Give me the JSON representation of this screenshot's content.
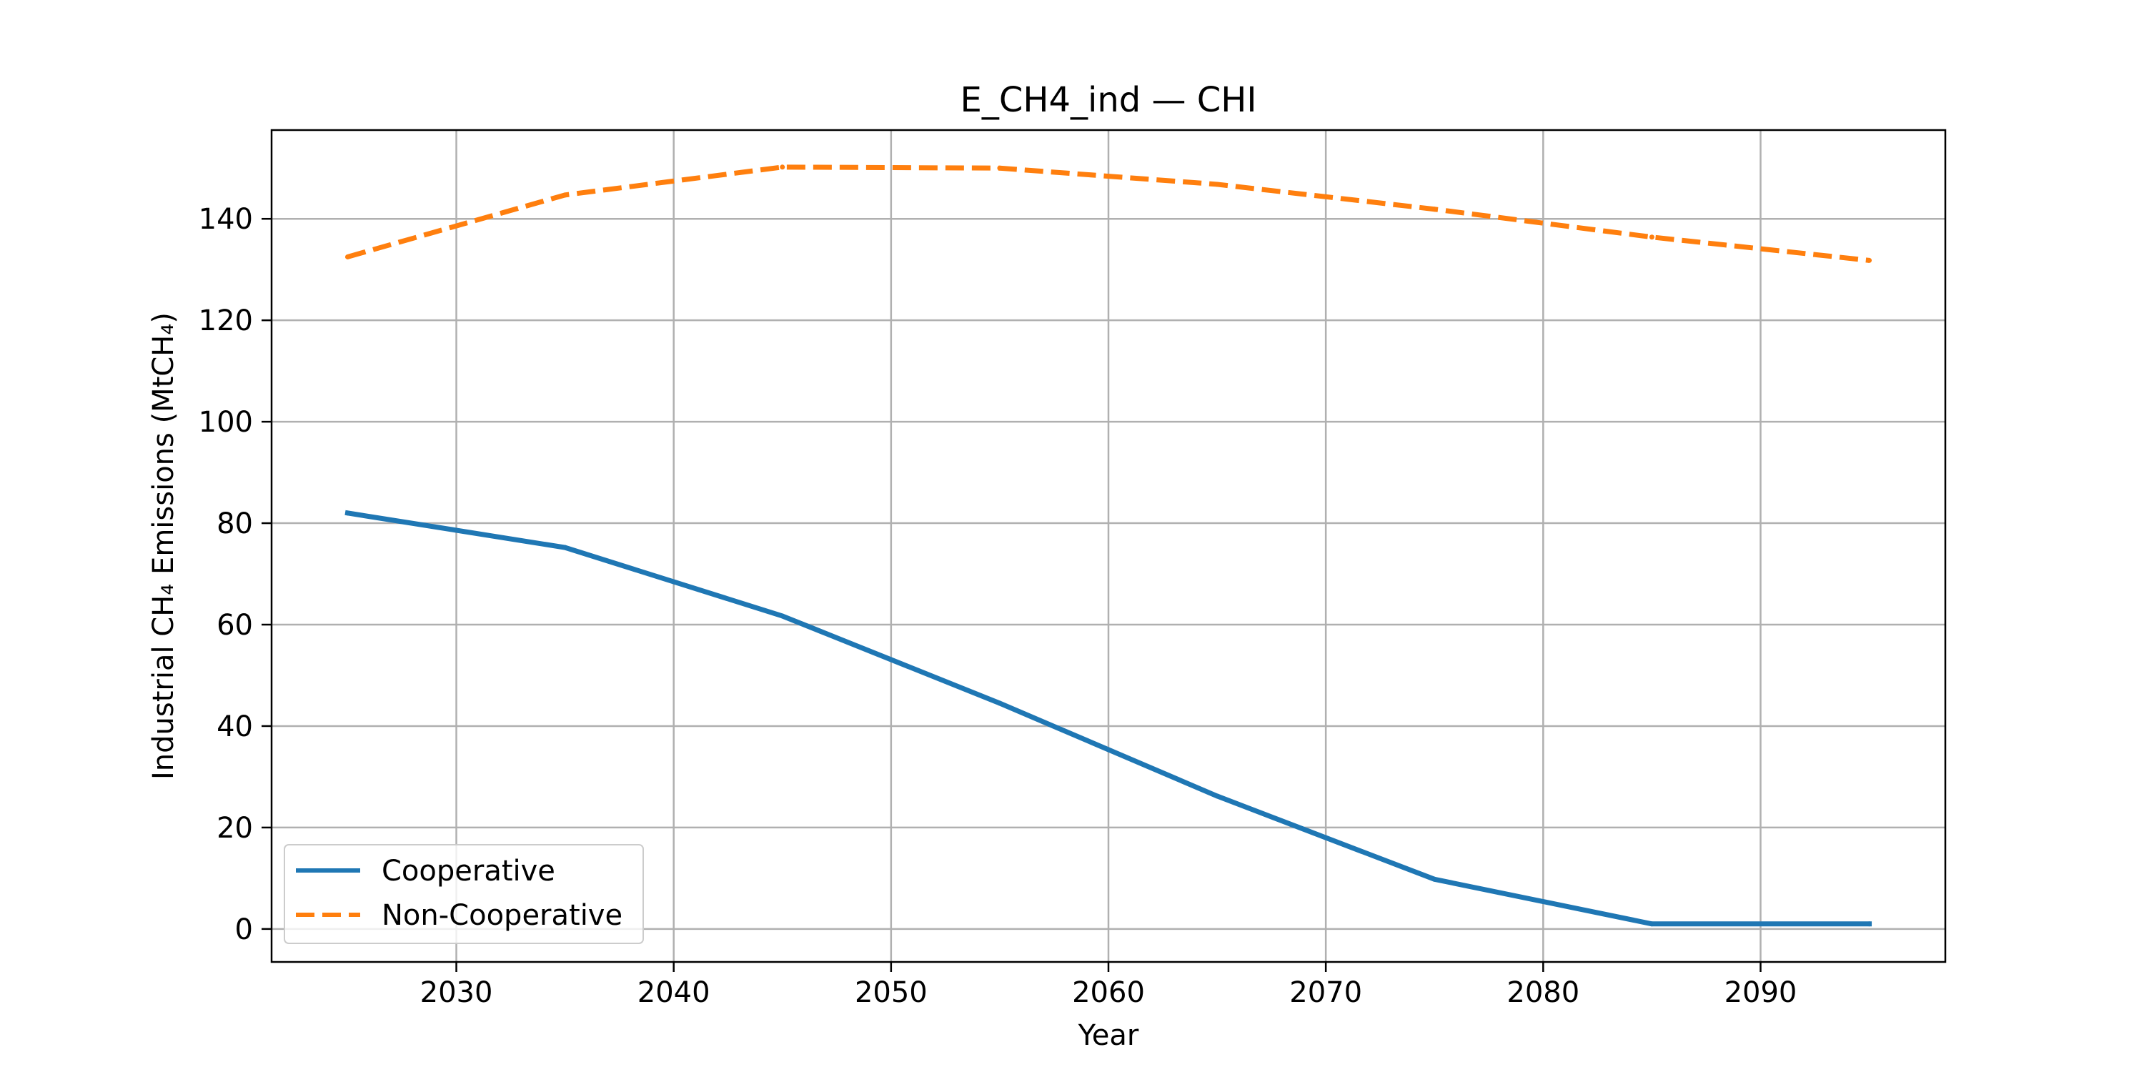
{
  "chart_data": {
    "type": "line",
    "title": "E_CH4_ind — CHI",
    "xlabel": "Year",
    "ylabel": "Industrial CH₄ Emissions (MtCH₄)",
    "x": [
      2025,
      2035,
      2045,
      2055,
      2065,
      2075,
      2085,
      2095
    ],
    "xlim": [
      2021.5,
      2098.5
    ],
    "ylim": [
      -6.5,
      157.5
    ],
    "xticks": [
      2030,
      2040,
      2050,
      2060,
      2070,
      2080,
      2090
    ],
    "yticks": [
      0,
      20,
      40,
      60,
      80,
      100,
      120,
      140
    ],
    "grid": true,
    "legend_position": "lower-left",
    "series": [
      {
        "name": "Cooperative",
        "values": [
          82.0,
          75.2,
          61.7,
          44.5,
          26.2,
          9.8,
          1.0,
          1.0
        ],
        "color": "#1f77b4",
        "style": "solid"
      },
      {
        "name": "Non-Cooperative",
        "values": [
          132.5,
          144.7,
          150.2,
          150.0,
          146.8,
          141.9,
          136.4,
          131.8
        ],
        "color": "#ff7f0e",
        "style": "dashed"
      }
    ]
  }
}
